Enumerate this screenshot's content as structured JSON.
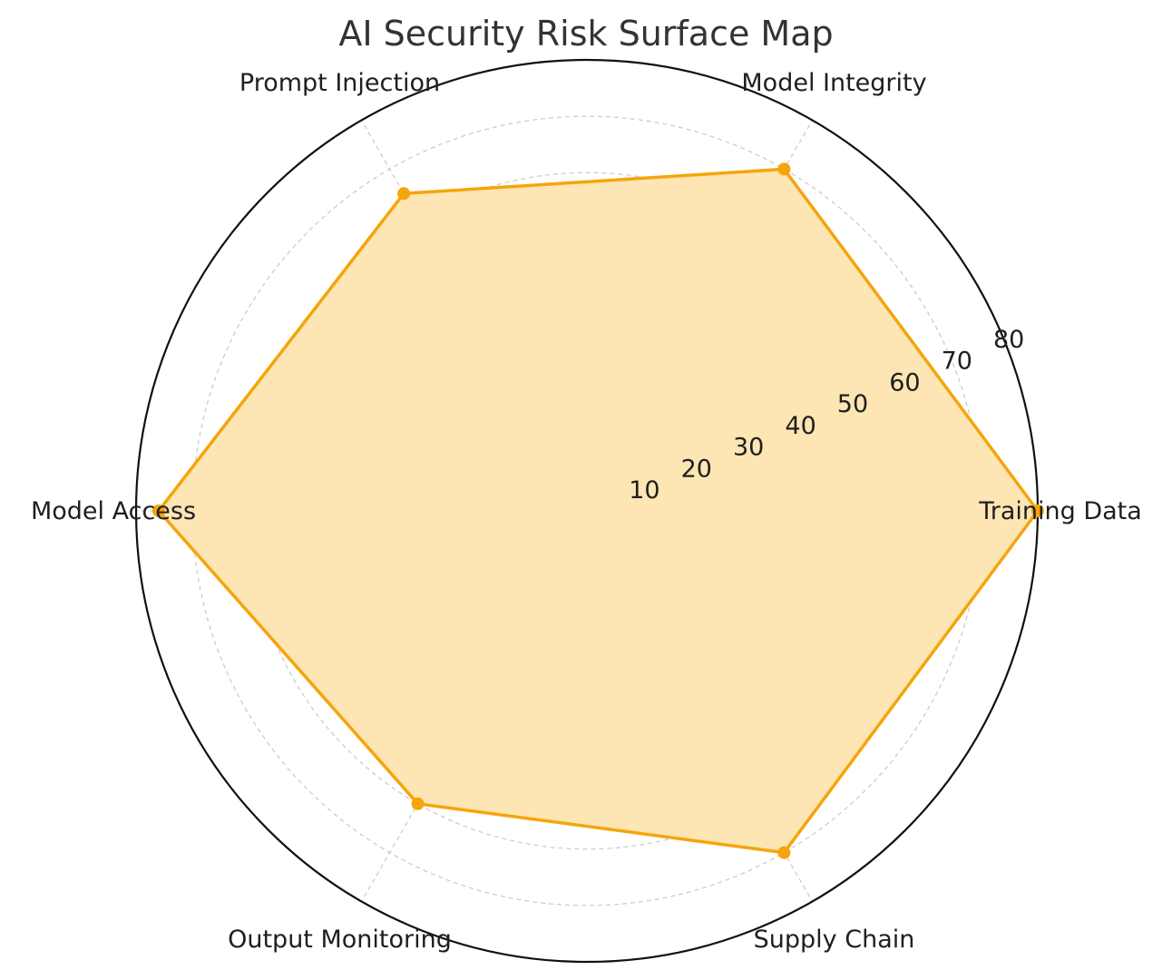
{
  "chart_data": {
    "type": "radar",
    "title": "AI Security Risk Surface Map",
    "categories": [
      "Training Data",
      "Model Integrity",
      "Prompt Injection",
      "Model Access",
      "Output Monitoring",
      "Supply Chain"
    ],
    "series": [
      {
        "values": [
          80,
          70,
          65,
          76,
          60,
          70
        ]
      }
    ],
    "rlim": [
      0,
      80
    ],
    "rticks": [
      10,
      20,
      30,
      40,
      50,
      60,
      70,
      80
    ],
    "grid": true,
    "colors": {
      "line": "#f5a50b",
      "fill": "#fde4b0"
    }
  }
}
